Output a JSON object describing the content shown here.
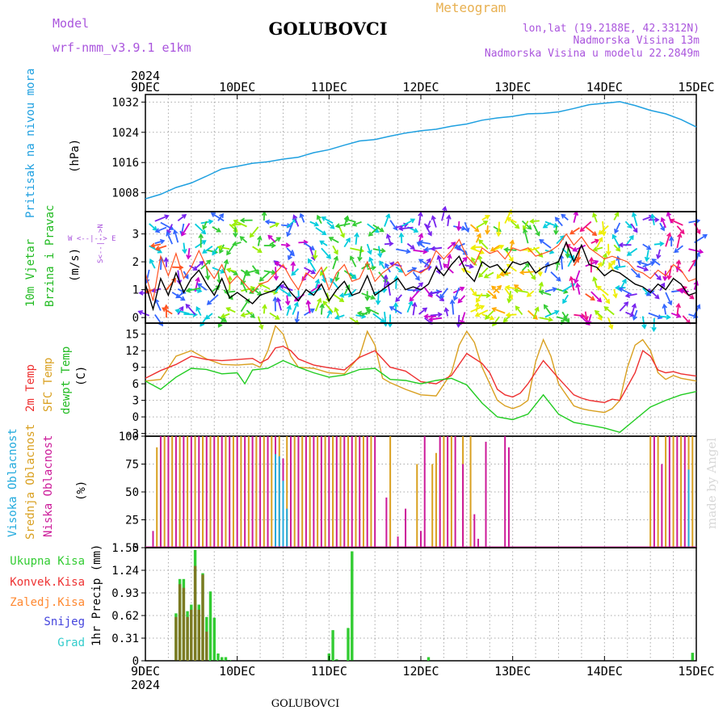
{
  "header": {
    "model_label": "Model",
    "model_name": "wrf-nmm_v3.9.1 e1km",
    "station": "GOLUBOVCI",
    "meteogram_label": "Meteogram",
    "coords": "lon,lat (19.2188E, 42.3312N)",
    "elevation": "Nadmorska Visina 13m",
    "model_elevation": "Nadmorska Visina u modelu 22.2849m",
    "watermark": "made by Angel",
    "footer_station": "GOLUBOVCI"
  },
  "colors": {
    "pressure": "#1fa0e0",
    "wind_speed": "#000000",
    "wind_gust": "#ff5020",
    "t2m": "#ee3030",
    "tsfc": "#d9a020",
    "dewpoint": "#22cc22",
    "cloud_high": "#22aadd",
    "cloud_mid": "#d9a020",
    "cloud_low": "#cc1a99",
    "precip_total": "#33cc33",
    "precip_conv": "#ee3333",
    "precip_frozen": "#ff8830",
    "snow": "#4444dd",
    "hail": "#33cccc",
    "title_purple": "#aa55dd",
    "meteogram_orange": "#e8b050"
  },
  "chart_data": [
    {
      "type": "line",
      "title": "",
      "ylabel": [
        "Pritisak na nivou mora",
        "(hPa)"
      ],
      "ylim": [
        1003,
        1034
      ],
      "yticks": [
        "1008",
        "1016",
        "1024",
        "1032"
      ],
      "xlim": [
        0,
        144
      ],
      "xticks": [
        "9DEC",
        "10DEC",
        "11DEC",
        "12DEC",
        "13DEC",
        "14DEC",
        "15DEC"
      ],
      "xticks_top_year": "2024",
      "grid": true,
      "series": [
        {
          "name": "",
          "x": [
            0,
            4,
            8,
            12,
            16,
            20,
            24,
            28,
            32,
            36,
            40,
            44,
            48,
            52,
            56,
            60,
            64,
            68,
            72,
            76,
            80,
            84,
            88,
            92,
            96,
            100,
            104,
            108,
            112,
            116,
            120,
            124,
            128,
            132,
            136,
            140,
            144
          ],
          "values": [
            1006.4,
            1007.6,
            1009.4,
            1010.6,
            1012.4,
            1014.3,
            1015.0,
            1015.8,
            1016.2,
            1016.9,
            1017.4,
            1018.6,
            1019.4,
            1020.6,
            1021.7,
            1022.1,
            1023.0,
            1023.8,
            1024.4,
            1024.8,
            1025.6,
            1026.2,
            1027.2,
            1027.8,
            1028.2,
            1028.9,
            1029.0,
            1029.4,
            1030.3,
            1031.3,
            1031.7,
            1032.1,
            1031.1,
            1029.8,
            1028.9,
            1027.4,
            1025.4
          ]
        }
      ]
    },
    {
      "type": "line",
      "title": "",
      "ylabel": [
        "10m Vjetar",
        "Brzina i Pravac",
        "(m/s)"
      ],
      "compass": [
        "N",
        "E",
        "W",
        "S"
      ],
      "ylim": [
        -0.2,
        3.8
      ],
      "yticks": [
        "0",
        "1",
        "2",
        "3"
      ],
      "xlim": [
        0,
        144
      ],
      "grid": true,
      "series": [
        {
          "name": "",
          "x": [
            0,
            2,
            4,
            6,
            8,
            10,
            12,
            14,
            16,
            18,
            20,
            22,
            24,
            26,
            28,
            30,
            32,
            34,
            36,
            38,
            40,
            42,
            44,
            46,
            48,
            50,
            52,
            54,
            56,
            58,
            60,
            62,
            64,
            66,
            68,
            70,
            72,
            74,
            76,
            78,
            80,
            82,
            84,
            86,
            88,
            90,
            92,
            94,
            96,
            98,
            100,
            102,
            104,
            106,
            108,
            110,
            112,
            114,
            116,
            118,
            120,
            122,
            124,
            126,
            128,
            130,
            132,
            134,
            136,
            138,
            140,
            142,
            144
          ],
          "values": [
            1.2,
            0.3,
            1.4,
            0.8,
            1.6,
            0.9,
            1.4,
            1.7,
            1.2,
            0.8,
            1.4,
            0.7,
            0.9,
            0.7,
            0.5,
            0.8,
            0.9,
            1.0,
            1.3,
            0.9,
            0.6,
            1.0,
            0.8,
            1.2,
            0.6,
            1.0,
            1.3,
            0.8,
            0.9,
            1.5,
            0.8,
            1.0,
            1.2,
            1.4,
            1.0,
            1.1,
            1.0,
            1.2,
            1.8,
            1.5,
            1.9,
            2.2,
            1.6,
            1.3,
            2.0,
            1.8,
            1.9,
            1.6,
            2.0,
            1.9,
            2.0,
            1.6,
            1.8,
            1.9,
            2.0,
            2.7,
            2.0,
            2.6,
            1.9,
            1.8,
            1.5,
            1.7,
            1.6,
            1.4,
            1.2,
            1.1,
            0.9,
            1.2,
            1.0,
            1.4,
            1.2,
            0.8,
            0.9
          ]
        },
        {
          "name": "",
          "x": [
            0,
            2,
            4,
            6,
            8,
            10,
            12,
            14,
            16,
            18,
            20,
            22,
            24,
            26,
            28,
            30,
            32,
            34,
            36,
            38,
            40,
            42,
            44,
            46,
            48,
            50,
            52,
            54,
            56,
            58,
            60,
            62,
            64,
            66,
            68,
            70,
            72,
            74,
            76,
            78,
            80,
            82,
            84,
            86,
            88,
            90,
            92,
            94,
            96,
            98,
            100,
            102,
            104,
            106,
            108,
            110,
            112,
            114,
            116,
            118,
            120,
            122,
            124,
            126,
            128,
            130,
            132,
            134,
            136,
            138,
            140,
            142,
            144
          ],
          "values": [
            1.6,
            0.6,
            2.2,
            1.5,
            2.3,
            1.4,
            1.8,
            2.4,
            1.8,
            1.4,
            1.9,
            1.2,
            1.5,
            1.2,
            0.9,
            1.2,
            1.3,
            1.6,
            1.9,
            1.4,
            1.0,
            1.6,
            1.4,
            1.8,
            1.0,
            1.6,
            1.9,
            1.3,
            1.4,
            2.0,
            1.3,
            1.6,
            1.8,
            2.0,
            1.5,
            1.7,
            1.6,
            1.8,
            2.4,
            2.1,
            2.4,
            2.8,
            2.2,
            1.9,
            2.5,
            2.3,
            2.4,
            2.1,
            2.5,
            2.4,
            2.5,
            2.2,
            2.3,
            2.4,
            2.6,
            3.0,
            2.6,
            2.9,
            2.5,
            2.3,
            2.1,
            2.2,
            2.1,
            2.0,
            1.7,
            1.6,
            1.4,
            1.7,
            1.5,
            1.9,
            1.7,
            1.3,
            1.4
          ]
        }
      ]
    },
    {
      "type": "line",
      "title": "",
      "ylabel": [
        "2m Temp",
        "SFC Temp",
        "dewpt Temp",
        "(C)"
      ],
      "ylim": [
        -3.5,
        17
      ],
      "yticks": [
        "-3",
        "0",
        "3",
        "6",
        "9",
        "12",
        "15"
      ],
      "xlim": [
        0,
        144
      ],
      "grid": true,
      "series": [
        {
          "name": "2m Temp",
          "x": [
            0,
            4,
            8,
            12,
            16,
            20,
            24,
            28,
            30,
            32,
            34,
            36,
            38,
            40,
            44,
            48,
            52,
            56,
            60,
            64,
            68,
            72,
            76,
            80,
            84,
            88,
            90,
            92,
            94,
            96,
            98,
            100,
            104,
            108,
            112,
            114,
            116,
            118,
            120,
            122,
            124,
            128,
            130,
            132,
            134,
            136,
            138,
            140,
            144
          ],
          "values": [
            7.0,
            8.4,
            9.5,
            11.0,
            10.4,
            10.2,
            10.4,
            10.6,
            9.8,
            10.5,
            12.5,
            12.8,
            12.0,
            10.5,
            9.4,
            8.9,
            8.5,
            10.8,
            12.0,
            9.0,
            8.3,
            6.4,
            6.0,
            7.5,
            11.5,
            9.7,
            8.0,
            5.0,
            4.0,
            3.6,
            4.3,
            6.0,
            10.2,
            7.0,
            4.0,
            3.4,
            3.0,
            2.8,
            2.6,
            3.2,
            3.0,
            8.0,
            12.0,
            11.0,
            8.5,
            8.0,
            8.2,
            7.8,
            7.4
          ]
        },
        {
          "name": "SFC Temp",
          "x": [
            0,
            4,
            8,
            12,
            16,
            20,
            24,
            28,
            30,
            32,
            34,
            36,
            38,
            40,
            44,
            48,
            52,
            56,
            58,
            60,
            62,
            64,
            68,
            72,
            76,
            80,
            82,
            84,
            86,
            88,
            90,
            92,
            94,
            96,
            98,
            100,
            102,
            104,
            106,
            108,
            112,
            114,
            116,
            118,
            120,
            122,
            124,
            126,
            128,
            130,
            132,
            134,
            136,
            138,
            140,
            144
          ],
          "values": [
            6.5,
            6.8,
            11.0,
            12.0,
            10.5,
            9.5,
            9.4,
            9.6,
            9.0,
            12.0,
            16.5,
            15.0,
            11.0,
            9.0,
            8.8,
            8.0,
            7.8,
            11.0,
            15.5,
            13.0,
            7.0,
            6.2,
            5.0,
            4.0,
            3.8,
            8.0,
            13.0,
            15.5,
            13.5,
            9.0,
            6.0,
            3.0,
            2.0,
            1.5,
            2.0,
            3.0,
            10.0,
            14.0,
            11.0,
            6.0,
            2.0,
            1.5,
            1.2,
            1.0,
            0.8,
            1.5,
            3.0,
            9.0,
            13.0,
            14.0,
            12.0,
            8.0,
            6.8,
            7.5,
            7.0,
            6.5
          ]
        },
        {
          "name": "dewpt Temp",
          "x": [
            0,
            4,
            8,
            12,
            16,
            20,
            24,
            26,
            28,
            32,
            36,
            40,
            44,
            48,
            52,
            56,
            60,
            64,
            68,
            72,
            76,
            80,
            84,
            88,
            92,
            96,
            100,
            104,
            108,
            112,
            116,
            120,
            124,
            128,
            132,
            136,
            140,
            144
          ],
          "values": [
            6.5,
            5.0,
            7.2,
            8.8,
            8.6,
            7.8,
            8.0,
            6.0,
            8.5,
            8.8,
            10.2,
            9.0,
            8.0,
            7.2,
            7.6,
            8.6,
            8.8,
            6.8,
            6.6,
            6.0,
            6.6,
            7.0,
            5.8,
            2.5,
            0.0,
            -0.5,
            0.5,
            4.0,
            0.5,
            -1.0,
            -1.5,
            -2.0,
            -2.8,
            -0.5,
            1.8,
            3.0,
            4.0,
            4.6
          ]
        }
      ]
    },
    {
      "type": "bar",
      "title": "",
      "ylabel": [
        "Visoka Oblacnost",
        "Srednja Oblacnost",
        "Niska Oblacnost",
        "(%)"
      ],
      "ylim": [
        0,
        100
      ],
      "yticks": [
        "0",
        "25",
        "50",
        "75",
        "100"
      ],
      "xlim": [
        0,
        144
      ],
      "grid": true,
      "series": [
        {
          "name": "Visoka Oblacnost",
          "x": [
            34,
            35,
            36,
            37,
            142
          ],
          "values": [
            84,
            82,
            60,
            35,
            70
          ]
        },
        {
          "name": "Srednja Oblacnost",
          "x": [
            3,
            4,
            5,
            7,
            9,
            11,
            13,
            15,
            17,
            19,
            21,
            23,
            25,
            27,
            29,
            31,
            33,
            35,
            37,
            39,
            41,
            43,
            45,
            47,
            49,
            51,
            53,
            55,
            57,
            59,
            64,
            71,
            75,
            76,
            78,
            80,
            83,
            85,
            132,
            134,
            136,
            138,
            140,
            142,
            143
          ],
          "values": [
            90,
            100,
            100,
            100,
            100,
            100,
            100,
            100,
            100,
            100,
            100,
            100,
            100,
            100,
            100,
            100,
            100,
            100,
            100,
            100,
            100,
            100,
            100,
            100,
            100,
            100,
            100,
            100,
            100,
            100,
            100,
            75,
            75,
            85,
            100,
            100,
            100,
            100,
            100,
            100,
            100,
            100,
            100,
            100,
            100
          ]
        },
        {
          "name": "Niska Oblacnost",
          "x": [
            2,
            4,
            6,
            8,
            10,
            12,
            14,
            16,
            18,
            20,
            22,
            24,
            26,
            28,
            30,
            32,
            34,
            36,
            38,
            40,
            42,
            44,
            46,
            48,
            50,
            52,
            54,
            56,
            58,
            60,
            63,
            66,
            68,
            72,
            73,
            77,
            79,
            81,
            83,
            86,
            87,
            89,
            94,
            95,
            133,
            135,
            137,
            139,
            141
          ],
          "values": [
            15,
            100,
            100,
            100,
            100,
            100,
            100,
            100,
            100,
            100,
            100,
            100,
            100,
            100,
            100,
            100,
            100,
            80,
            100,
            100,
            100,
            100,
            100,
            100,
            100,
            100,
            100,
            100,
            100,
            100,
            45,
            10,
            35,
            15,
            100,
            100,
            100,
            100,
            75,
            30,
            8,
            95,
            100,
            90,
            100,
            75,
            100,
            100,
            100
          ]
        }
      ]
    },
    {
      "type": "bar",
      "title": "",
      "ylabel": [
        "1hr Precip (mm)"
      ],
      "legend": [
        "Ukupna Kisa",
        "Konvek.Kisa",
        "Zaledj.Kisa",
        "Snijeg",
        "Grad"
      ],
      "ylim": [
        0,
        1.55
      ],
      "yticks": [
        "0",
        "0.31",
        "0.62",
        "0.93",
        "1.24",
        "1.55"
      ],
      "xlim": [
        0,
        144
      ],
      "xticks_bottom_year": "2024",
      "grid": true,
      "series": [
        {
          "name": "Ukupna Kisa",
          "x": [
            8,
            9,
            10,
            11,
            12,
            13,
            14,
            15,
            16,
            17,
            18,
            19,
            20,
            21,
            22,
            48,
            49,
            50,
            53,
            54,
            74,
            143
          ],
          "values": [
            0.65,
            1.12,
            1.12,
            0.68,
            0.77,
            1.52,
            0.77,
            1.2,
            0.6,
            0.95,
            0.59,
            0.1,
            0.05,
            0.05,
            0.01,
            0.1,
            0.42,
            0.02,
            0.45,
            1.5,
            0.05,
            0.11
          ]
        },
        {
          "name": "Konvek.Kisa",
          "x": [
            8,
            9,
            10,
            11,
            12,
            13,
            14,
            15,
            16
          ],
          "values": [
            0.6,
            1.05,
            1.0,
            0.6,
            0.7,
            1.3,
            0.7,
            1.18,
            0.4
          ]
        }
      ]
    }
  ]
}
